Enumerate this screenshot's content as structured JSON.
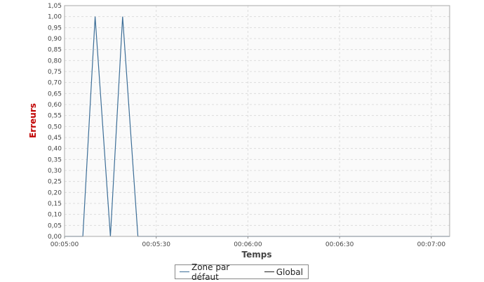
{
  "chart_data": {
    "type": "line",
    "xlabel": "Temps",
    "ylabel": "Erreurs",
    "xlim_seconds": [
      300,
      426
    ],
    "ylim": [
      0,
      1.05
    ],
    "y_tick_step": 0.05,
    "y_tick_labels": [
      "0,00",
      "0,05",
      "0,10",
      "0,15",
      "0,20",
      "0,25",
      "0,30",
      "0,35",
      "0,40",
      "0,45",
      "0,50",
      "0,55",
      "0,60",
      "0,65",
      "0,70",
      "0,75",
      "0,80",
      "0,85",
      "0,90",
      "0,95",
      "1,00",
      "1,05"
    ],
    "x_ticks": [
      {
        "value": 300,
        "label": "00:05:00"
      },
      {
        "value": 330,
        "label": "00:05:30"
      },
      {
        "value": 360,
        "label": "00:06:00"
      },
      {
        "value": 390,
        "label": "00:06:30"
      },
      {
        "value": 420,
        "label": "00:07:00"
      }
    ],
    "grid": true,
    "legend_position": "bottom-center",
    "series": [
      {
        "name": "Zone par défaut",
        "color": "#3d6e97",
        "points": [
          [
            300,
            0
          ],
          [
            306,
            0
          ],
          [
            310,
            1
          ],
          [
            315,
            0
          ],
          [
            319,
            1
          ],
          [
            324,
            0
          ],
          [
            426,
            0
          ]
        ]
      },
      {
        "name": "Global",
        "color": "#222222",
        "points": []
      }
    ],
    "colors": {
      "ylabel": "#c00000",
      "xlabel": "#444444",
      "grid": "#dddddd",
      "plot_bg": "#fafafa"
    }
  }
}
